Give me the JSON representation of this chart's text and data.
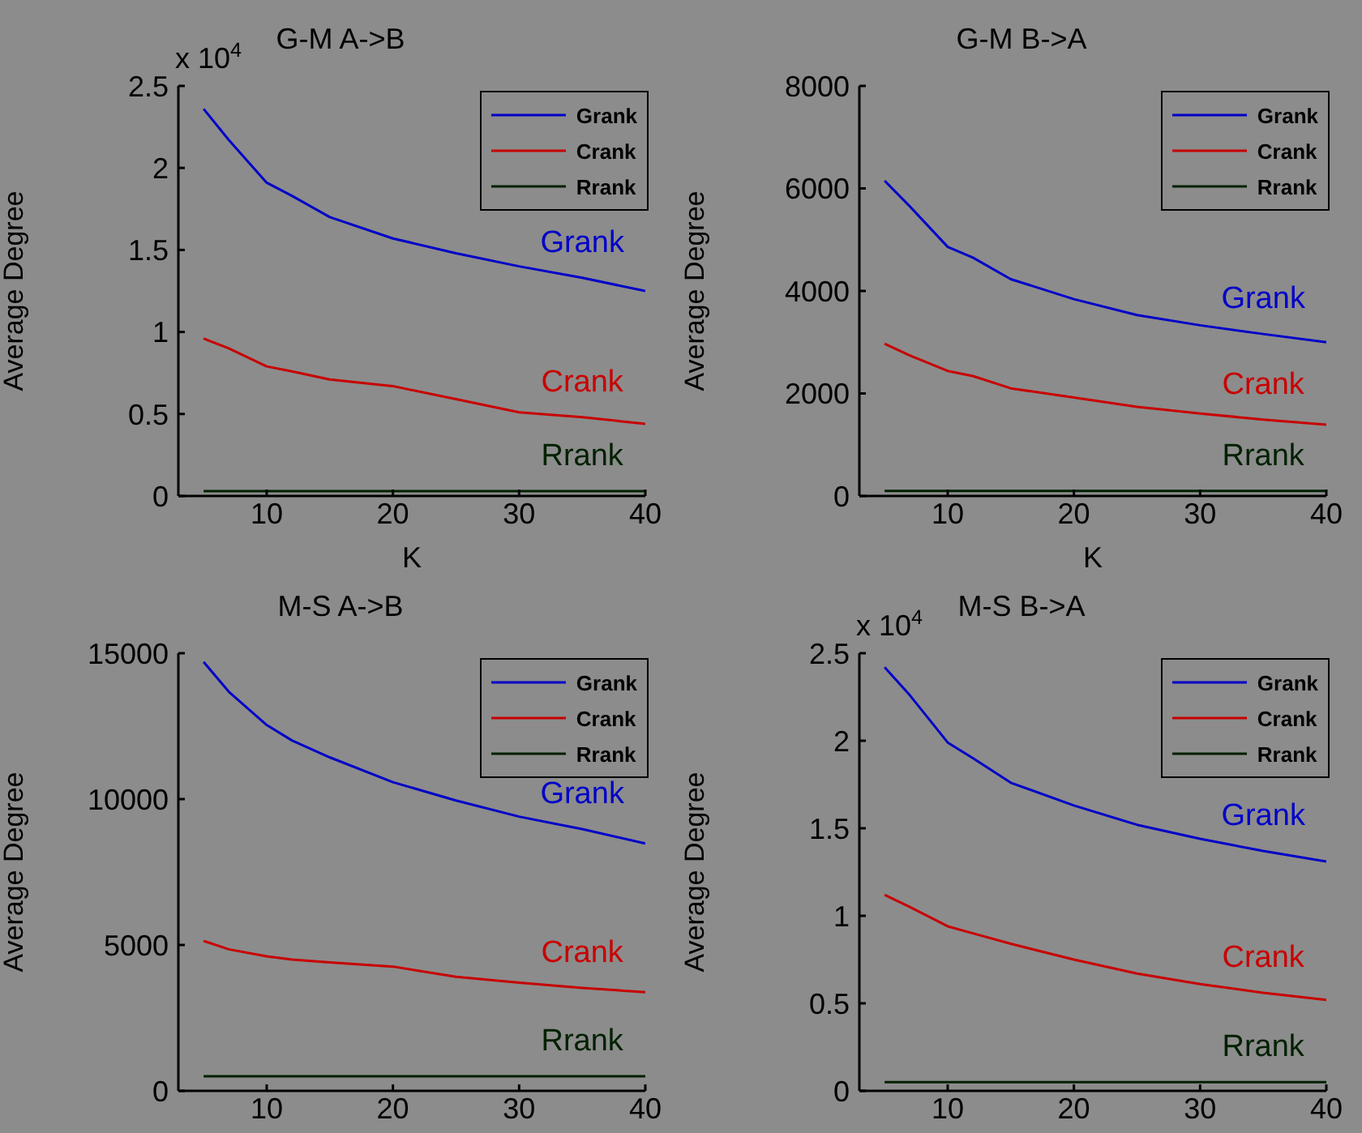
{
  "chart_data": [
    {
      "type": "line",
      "title": "G-M A->B",
      "xlabel": "K",
      "ylabel": "Average Degree",
      "x": [
        5,
        7,
        10,
        12,
        15,
        20,
        25,
        30,
        35,
        40
      ],
      "xlim": [
        3,
        40
      ],
      "xticks": [
        10,
        20,
        30,
        40
      ],
      "ylim": [
        0,
        2.5
      ],
      "yticks": [
        0,
        0.5,
        1,
        1.5,
        2,
        2.5
      ],
      "legend": "top right",
      "grid": false,
      "series": [
        {
          "name": "Grank",
          "color": "#0000c8",
          "values": [
            2.36,
            2.17,
            1.91,
            1.83,
            1.7,
            1.57,
            1.48,
            1.4,
            1.33,
            1.25
          ]
        },
        {
          "name": "Crank",
          "color": "#c80000",
          "values": [
            0.96,
            0.9,
            0.79,
            0.76,
            0.71,
            0.67,
            0.59,
            0.51,
            0.48,
            0.44
          ]
        },
        {
          "name": "Rrank",
          "color": "#002000",
          "values": [
            0.03,
            0.03,
            0.03,
            0.03,
            0.03,
            0.03,
            0.03,
            0.03,
            0.03,
            0.03
          ]
        }
      ],
      "annotations": [
        "x 10$^{4}$"
      ]
    },
    {
      "type": "line",
      "title": "G-M B->A",
      "xlabel": "K",
      "ylabel": "Average Degree",
      "x": [
        5,
        7,
        10,
        12,
        15,
        20,
        25,
        30,
        35,
        40
      ],
      "xlim": [
        3,
        40
      ],
      "xticks": [
        10,
        20,
        30,
        40
      ],
      "ylim": [
        0,
        8000
      ],
      "yticks": [
        0,
        2000,
        4000,
        6000,
        8000
      ],
      "legend": "top right",
      "grid": false,
      "series": [
        {
          "name": "Grank",
          "color": "#0000c8",
          "values": [
            6150,
            5650,
            4860,
            4650,
            4230,
            3840,
            3530,
            3330,
            3160,
            3000
          ]
        },
        {
          "name": "Crank",
          "color": "#c80000",
          "values": [
            2970,
            2740,
            2440,
            2340,
            2100,
            1920,
            1740,
            1610,
            1490,
            1390
          ]
        },
        {
          "name": "Rrank",
          "color": "#002000",
          "values": [
            100,
            100,
            100,
            100,
            100,
            100,
            100,
            100,
            100,
            100
          ]
        }
      ]
    },
    {
      "type": "line",
      "title": "M-S A->B",
      "ylabel": "Average Degree",
      "x": [
        5,
        7,
        10,
        12,
        15,
        20,
        25,
        30,
        35,
        40
      ],
      "xlim": [
        3,
        40
      ],
      "xticks": [
        10,
        20,
        30,
        40
      ],
      "ylim": [
        0,
        15000
      ],
      "yticks": [
        0,
        5000,
        10000,
        15000
      ],
      "legend": "top right",
      "grid": false,
      "series": [
        {
          "name": "Grank",
          "color": "#0000c8",
          "values": [
            14700,
            13680,
            12540,
            12010,
            11430,
            10580,
            9950,
            9400,
            8970,
            8480
          ]
        },
        {
          "name": "Crank",
          "color": "#c80000",
          "values": [
            5140,
            4850,
            4610,
            4500,
            4400,
            4260,
            3910,
            3710,
            3530,
            3380
          ]
        },
        {
          "name": "Rrank",
          "color": "#002000",
          "values": [
            500,
            500,
            500,
            500,
            500,
            500,
            500,
            500,
            500,
            500
          ]
        }
      ]
    },
    {
      "type": "line",
      "title": "M-S B->A",
      "ylabel": "Average Degree",
      "x": [
        5,
        7,
        10,
        12,
        15,
        20,
        25,
        30,
        35,
        40
      ],
      "xlim": [
        3,
        40
      ],
      "xticks": [
        10,
        20,
        30,
        40
      ],
      "ylim": [
        0,
        2.5
      ],
      "yticks": [
        0,
        0.5,
        1,
        1.5,
        2,
        2.5
      ],
      "legend": "top right",
      "grid": false,
      "series": [
        {
          "name": "Grank",
          "color": "#0000c8",
          "values": [
            2.42,
            2.26,
            1.99,
            1.9,
            1.76,
            1.63,
            1.52,
            1.44,
            1.37,
            1.31
          ]
        },
        {
          "name": "Crank",
          "color": "#c80000",
          "values": [
            1.12,
            1.05,
            0.94,
            0.9,
            0.84,
            0.75,
            0.67,
            0.61,
            0.56,
            0.52
          ]
        },
        {
          "name": "Rrank",
          "color": "#002000",
          "values": [
            0.05,
            0.05,
            0.05,
            0.05,
            0.05,
            0.05,
            0.05,
            0.05,
            0.05,
            0.05
          ]
        }
      ],
      "annotations": [
        "x 10$^{4}$"
      ]
    }
  ]
}
